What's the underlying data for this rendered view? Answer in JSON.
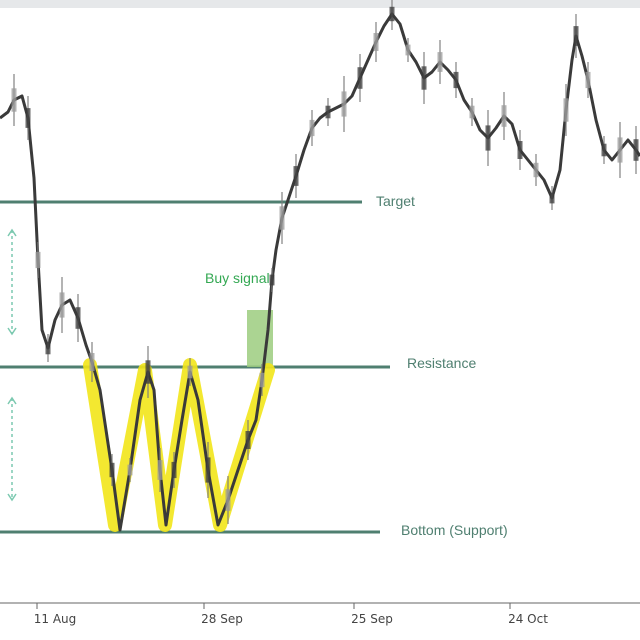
{
  "chart_data": {
    "type": "candlestick",
    "colors": {
      "price": "#3a3a3a",
      "wick": "#7a7a7a",
      "level_line": "#4f7f70",
      "pattern_highlight": "#f2e61a",
      "signal_box": "#9ccd7f",
      "measure_arrow": "#7cc9b0",
      "axis": "#666666"
    },
    "x_tick_labels": [
      "11 Aug",
      "28 Sep",
      "25 Sep",
      "24 Oct"
    ],
    "annotations": {
      "target": "Target",
      "resistance": "Resistance",
      "bottom": "Bottom (Support)",
      "signal": "Buy signal"
    },
    "pattern": "double-bottom W",
    "series": [
      {
        "values": [
          [
            0.0,
            0.8
          ],
          [
            0.5,
            0.8
          ],
          [
            1.0,
            0.82
          ],
          [
            1.5,
            0.85
          ],
          [
            1.8,
            0.78
          ],
          [
            2.0,
            0.7
          ],
          [
            2.5,
            0.5
          ],
          [
            3.0,
            0.43
          ],
          [
            3.5,
            0.48
          ],
          [
            4.0,
            0.45
          ],
          [
            4.5,
            0.4
          ],
          [
            5.0,
            0.42
          ],
          [
            5.5,
            0.3
          ],
          [
            6.0,
            0.18
          ],
          [
            6.5,
            0.36
          ],
          [
            7.0,
            0.26
          ],
          [
            7.5,
            0.12
          ],
          [
            8.0,
            0.34
          ],
          [
            8.5,
            0.22
          ],
          [
            9.0,
            0.14
          ],
          [
            9.5,
            0.22
          ],
          [
            10.0,
            0.3
          ],
          [
            10.5,
            0.55
          ],
          [
            11.0,
            0.62
          ],
          [
            11.5,
            0.68
          ],
          [
            12.0,
            0.72
          ],
          [
            12.5,
            0.78
          ],
          [
            13.0,
            0.84
          ],
          [
            13.5,
            0.88
          ],
          [
            14.0,
            0.92
          ],
          [
            14.5,
            0.95
          ],
          [
            15.0,
            0.98
          ],
          [
            15.5,
            0.93
          ],
          [
            16.0,
            0.9
          ],
          [
            16.5,
            0.88
          ],
          [
            17.0,
            0.84
          ],
          [
            17.5,
            0.78
          ],
          [
            18.0,
            0.72
          ],
          [
            18.5,
            0.76
          ],
          [
            19.0,
            0.72
          ],
          [
            19.5,
            0.7
          ],
          [
            20.0,
            0.74
          ],
          [
            20.5,
            0.68
          ],
          [
            21.0,
            0.72
          ],
          [
            21.5,
            0.66
          ],
          [
            22.0,
            0.8
          ],
          [
            22.5,
            0.9
          ],
          [
            23.0,
            0.8
          ],
          [
            23.5,
            0.7
          ],
          [
            24.0,
            0.74
          ],
          [
            24.5,
            0.68
          ],
          [
            25.0,
            0.7
          ]
        ]
      }
    ],
    "levels": {
      "target": 0.66,
      "resistance": 0.36,
      "bottom": 0.0
    }
  }
}
